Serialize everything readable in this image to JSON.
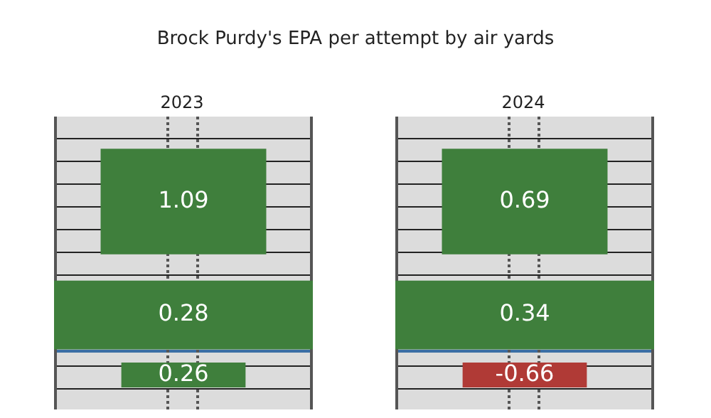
{
  "chart_data": [
    {
      "type": "other",
      "title": "2023",
      "annotations": [
        "Brock Purdy's EPA per attempt by air yards"
      ],
      "categories": [
        null,
        null,
        null
      ],
      "values": [
        1.09,
        0.28,
        0.26
      ],
      "colors": [
        "#3f7f3c",
        "#3f7f3c",
        "#3f7f3c"
      ],
      "data_labels": true
    },
    {
      "type": "other",
      "title": "2024",
      "categories": [
        null,
        null,
        null
      ],
      "values": [
        0.69,
        0.34,
        -0.66
      ],
      "colors": [
        "#3f7f3c",
        "#3f7f3c",
        "#b03a36"
      ],
      "data_labels": true
    }
  ]
}
